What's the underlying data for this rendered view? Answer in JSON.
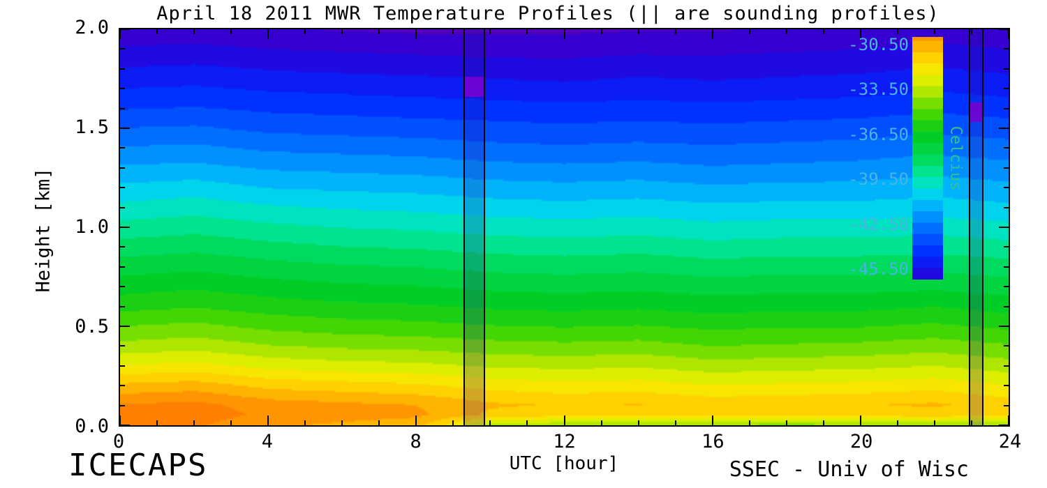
{
  "title": "April 18 2011 MWR Temperature Profiles (|| are sounding profiles)",
  "x_axis_title": "UTC [hour]",
  "y_axis_title": "Height [km]",
  "footer_left": "ICECAPS",
  "footer_right": "SSEC - Univ of Wisc",
  "colors": {
    "colorbar_tick_label": "#49b4e6",
    "colorbar_unit_label": "#35c08c",
    "sounding_column_fill": "rgba(40,16,160,0.22)",
    "sounding_cap_fill": "rgba(122,0,208,0.85)",
    "axis": "#000000",
    "background": "#ffffff"
  },
  "chart_data": {
    "type": "heatmap",
    "title": "April 18 2011 MWR Temperature Profiles (|| are sounding profiles)",
    "xlabel": "UTC [hour]",
    "ylabel": "Height [km]",
    "units": "Celcius",
    "xlim": [
      0,
      24
    ],
    "ylim": [
      0,
      2
    ],
    "x_major_ticks": [
      0,
      4,
      8,
      12,
      16,
      20,
      24
    ],
    "x_minor_step": 1,
    "y_major_ticks": [
      0.0,
      0.5,
      1.0,
      1.5,
      2.0
    ],
    "y_major_labels": [
      "0.0",
      "0.5",
      "1.0",
      "1.5",
      "2.0"
    ],
    "y_minor_step": 0.1,
    "contour_interval": 0.75,
    "x": [
      0,
      2,
      4,
      6,
      8,
      10,
      12,
      14,
      16,
      18,
      20,
      22,
      24
    ],
    "y": [
      0,
      0.05,
      0.1,
      0.2,
      0.3,
      0.4,
      0.5,
      0.6,
      0.7,
      0.8,
      0.9,
      1.0,
      1.1,
      1.2,
      1.3,
      1.4,
      1.5,
      1.6,
      1.7,
      1.8,
      1.9,
      2.0
    ],
    "values": [
      [
        -29.6,
        -29.4,
        -29.6,
        -31.0,
        -32.6,
        -33.9,
        -34.9,
        -35.9,
        -36.7,
        -37.5,
        -38.3,
        -39.1,
        -39.9,
        -40.7,
        -41.5,
        -42.3,
        -43.1,
        -43.9,
        -44.6,
        -45.3,
        -46.0,
        -46.7
      ],
      [
        -29.5,
        -29.2,
        -29.4,
        -30.8,
        -32.4,
        -33.7,
        -34.7,
        -35.7,
        -36.5,
        -37.3,
        -38.1,
        -38.9,
        -39.7,
        -40.5,
        -41.4,
        -42.2,
        -43.0,
        -43.8,
        -44.5,
        -45.2,
        -45.9,
        -46.6
      ],
      [
        -30.2,
        -29.8,
        -30.0,
        -31.4,
        -32.9,
        -34.1,
        -35.1,
        -36.0,
        -36.8,
        -37.6,
        -38.4,
        -39.2,
        -40.0,
        -40.9,
        -41.7,
        -42.5,
        -43.3,
        -44.0,
        -44.7,
        -45.4,
        -46.1,
        -46.8
      ],
      [
        -30.5,
        -30.0,
        -30.2,
        -31.6,
        -33.1,
        -34.3,
        -35.3,
        -36.2,
        -37.0,
        -37.8,
        -38.6,
        -39.4,
        -40.2,
        -41.0,
        -41.8,
        -42.6,
        -43.4,
        -44.1,
        -44.8,
        -45.5,
        -46.2,
        -46.9
      ],
      [
        -30.8,
        -30.2,
        -30.4,
        -31.8,
        -33.2,
        -34.4,
        -35.4,
        -36.3,
        -37.1,
        -37.9,
        -38.7,
        -39.5,
        -40.3,
        -41.1,
        -41.9,
        -42.7,
        -43.5,
        -44.2,
        -44.9,
        -45.6,
        -46.3,
        -47.0
      ],
      [
        -33.5,
        -31.3,
        -31.0,
        -32.2,
        -33.5,
        -34.6,
        -35.6,
        -36.5,
        -37.3,
        -38.1,
        -38.9,
        -39.7,
        -40.5,
        -41.3,
        -42.1,
        -42.9,
        -43.6,
        -44.3,
        -45.0,
        -45.7,
        -46.4,
        -47.0
      ],
      [
        -33.8,
        -31.6,
        -31.2,
        -32.4,
        -33.6,
        -34.7,
        -35.7,
        -36.6,
        -37.4,
        -38.2,
        -39.0,
        -39.8,
        -40.6,
        -41.4,
        -42.2,
        -43.0,
        -43.7,
        -44.4,
        -45.1,
        -45.8,
        -46.4,
        -47.0
      ],
      [
        -34.0,
        -31.5,
        -31.1,
        -32.3,
        -33.5,
        -34.6,
        -35.6,
        -36.5,
        -37.3,
        -38.1,
        -38.9,
        -39.7,
        -40.5,
        -41.3,
        -42.1,
        -42.9,
        -43.6,
        -44.3,
        -45.0,
        -45.6,
        -46.3,
        -46.9
      ],
      [
        -34.0,
        -31.8,
        -31.4,
        -32.6,
        -33.8,
        -34.9,
        -35.8,
        -36.7,
        -37.5,
        -38.3,
        -39.1,
        -39.9,
        -40.7,
        -41.5,
        -42.3,
        -43.0,
        -43.7,
        -44.4,
        -45.1,
        -45.7,
        -46.3,
        -46.9
      ],
      [
        -34.2,
        -31.7,
        -31.3,
        -32.5,
        -33.7,
        -34.8,
        -35.7,
        -36.6,
        -37.4,
        -38.2,
        -39.0,
        -39.8,
        -40.6,
        -41.4,
        -42.2,
        -42.9,
        -43.6,
        -44.3,
        -45.0,
        -45.6,
        -46.2,
        -46.8
      ],
      [
        -34.0,
        -31.6,
        -31.2,
        -32.4,
        -33.6,
        -34.7,
        -35.7,
        -36.6,
        -37.4,
        -38.2,
        -39.0,
        -39.8,
        -40.6,
        -41.4,
        -42.1,
        -42.8,
        -43.5,
        -44.2,
        -44.9,
        -45.5,
        -46.1,
        -46.7
      ],
      [
        -33.8,
        -31.4,
        -31.0,
        -32.2,
        -33.4,
        -34.5,
        -35.5,
        -36.4,
        -37.3,
        -38.1,
        -38.9,
        -39.7,
        -40.5,
        -41.2,
        -41.9,
        -42.6,
        -43.3,
        -44.0,
        -44.7,
        -45.3,
        -45.9,
        -46.5
      ],
      [
        -34.0,
        -31.8,
        -31.5,
        -32.6,
        -33.8,
        -34.8,
        -35.8,
        -36.7,
        -37.5,
        -38.3,
        -39.1,
        -39.9,
        -40.7,
        -41.4,
        -42.1,
        -42.8,
        -43.5,
        -44.2,
        -44.9,
        -45.5,
        -46.1,
        -46.7
      ]
    ],
    "palette": [
      {
        "t": -47.5,
        "c": "#5a00b4"
      },
      {
        "t": -46.2,
        "c": "#2a00d8"
      },
      {
        "t": -44.5,
        "c": "#0028ff"
      },
      {
        "t": -43.0,
        "c": "#0064ff"
      },
      {
        "t": -41.5,
        "c": "#00a8ff"
      },
      {
        "t": -40.3,
        "c": "#00dce8"
      },
      {
        "t": -39.4,
        "c": "#00e8a8"
      },
      {
        "t": -38.0,
        "c": "#00d850"
      },
      {
        "t": -36.5,
        "c": "#00cc1e"
      },
      {
        "t": -35.0,
        "c": "#50d800"
      },
      {
        "t": -34.0,
        "c": "#a0e400"
      },
      {
        "t": -33.0,
        "c": "#dcee00"
      },
      {
        "t": -32.0,
        "c": "#ffe400"
      },
      {
        "t": -31.0,
        "c": "#ffbe00"
      },
      {
        "t": -30.0,
        "c": "#ff9600"
      },
      {
        "t": -29.0,
        "c": "#ff7800"
      }
    ],
    "colorbar": {
      "unit_label": "Celcius",
      "tick_labels": [
        "-30.50",
        "-33.50",
        "-36.50",
        "-39.50",
        "-42.50",
        "-45.50"
      ],
      "tick_values": [
        -30.5,
        -33.5,
        -36.5,
        -39.5,
        -42.5,
        -45.5
      ],
      "top_value": -30.0,
      "bottom_value": -46.2
    },
    "soundings": [
      {
        "x0": 9.3,
        "x1": 9.85,
        "cap_top_km": 1.76,
        "cap_bottom_km": 1.66
      },
      {
        "x0": 22.95,
        "x1": 23.3,
        "cap_top_km": 1.63,
        "cap_bottom_km": 1.53
      }
    ]
  }
}
